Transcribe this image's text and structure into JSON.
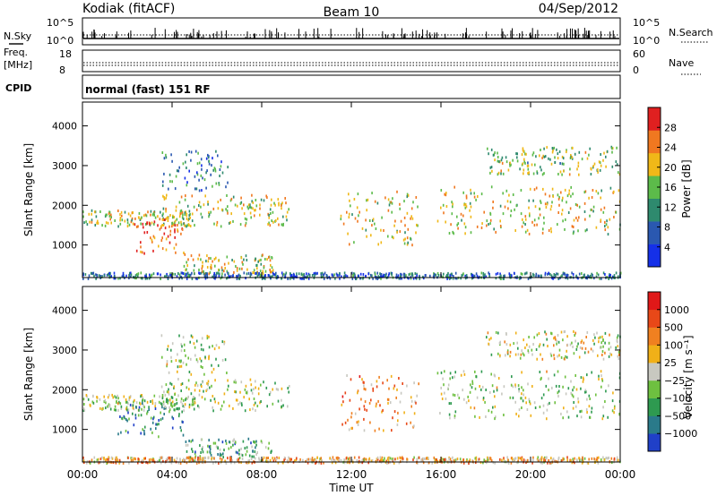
{
  "header": {
    "station": "Kodiak (fitACF)",
    "beam": "Beam 10",
    "date": "04/Sep/2012"
  },
  "strip_nsky": {
    "left_label": "N.Sky",
    "right_label": "N.Search",
    "left_ticks": [
      "10^5",
      "10^0"
    ],
    "right_ticks": [
      "10^5",
      "10^0"
    ]
  },
  "strip_freq": {
    "left_label_1": "Freq.",
    "left_label_2": "[MHz]",
    "right_label": "Nave",
    "left_ticks": [
      "18",
      "8"
    ],
    "right_ticks": [
      "60",
      "0"
    ]
  },
  "cpid": {
    "label": "CPID",
    "value": "normal (fast) 151 RF"
  },
  "chart_data": [
    {
      "type": "heatmap",
      "quantity": "Power",
      "ylabel": "Slant Range [km]",
      "xlabel": "Time UT",
      "ylim": [
        180,
        4600
      ],
      "xlim": [
        0,
        24
      ],
      "yticks": [
        "1000",
        "2000",
        "3000",
        "4000"
      ],
      "xticks": [
        "00:00",
        "04:00",
        "08:00",
        "12:00",
        "16:00",
        "20:00",
        "00:00"
      ],
      "colorbar": {
        "label": "Power [dB]",
        "ticks": [
          "4",
          "8",
          "12",
          "16",
          "20",
          "24",
          "28"
        ],
        "colors": [
          "#1530e8",
          "#2a58b0",
          "#2e8a6e",
          "#5cbb4a",
          "#f0b818",
          "#f07820",
          "#e02020"
        ],
        "range": [
          0,
          30
        ]
      },
      "bands": [
        {
          "t0": 0.0,
          "t1": 5.0,
          "r0": 1500,
          "r1": 1900,
          "level": 0.55
        },
        {
          "t0": 2.3,
          "t1": 4.5,
          "r0": 800,
          "r1": 1700,
          "level": 0.85
        },
        {
          "t0": 3.5,
          "t1": 9.2,
          "r0": 1500,
          "r1": 2300,
          "level": 0.6
        },
        {
          "t0": 3.5,
          "t1": 6.5,
          "r0": 2400,
          "r1": 3400,
          "level": 0.3
        },
        {
          "t0": 4.5,
          "t1": 8.5,
          "r0": 300,
          "r1": 800,
          "level": 0.6
        },
        {
          "t0": 11.5,
          "t1": 15.0,
          "r0": 1000,
          "r1": 2400,
          "level": 0.6
        },
        {
          "t0": 15.8,
          "t1": 24.0,
          "r0": 1300,
          "r1": 2500,
          "level": 0.6
        },
        {
          "t0": 18.0,
          "t1": 24.0,
          "r0": 2800,
          "r1": 3500,
          "level": 0.5
        },
        {
          "t0": 0.0,
          "t1": 24.0,
          "r0": 180,
          "r1": 330,
          "level": 0.25
        }
      ]
    },
    {
      "type": "heatmap",
      "quantity": "Velocity",
      "ylabel": "Slant Range [km]",
      "xlabel": "Time UT",
      "ylim": [
        180,
        4600
      ],
      "xlim": [
        0,
        24
      ],
      "yticks": [
        "1000",
        "2000",
        "3000",
        "4000"
      ],
      "xticks": [
        "00:00",
        "04:00",
        "08:00",
        "12:00",
        "16:00",
        "20:00",
        "00:00"
      ],
      "colorbar": {
        "label": "Velocity [m s⁻¹]",
        "ticks": [
          "1000",
          "500",
          "100",
          "25",
          "−25",
          "−100",
          "−500",
          "−1000"
        ],
        "colors": [
          "#2040c8",
          "#2a7a8a",
          "#2e9a50",
          "#6ec040",
          "#c8c8c0",
          "#f0b018",
          "#f08020",
          "#e84818",
          "#e01818"
        ],
        "range": [
          -1000,
          1000
        ]
      },
      "bands": [
        {
          "t0": 0.0,
          "t1": 5.0,
          "r0": 1500,
          "r1": 1900,
          "level": 0.45
        },
        {
          "t0": 1.5,
          "t1": 4.5,
          "r0": 800,
          "r1": 1700,
          "level": 0.2
        },
        {
          "t0": 3.5,
          "t1": 9.2,
          "r0": 1500,
          "r1": 2300,
          "level": 0.45
        },
        {
          "t0": 3.5,
          "t1": 6.5,
          "r0": 2400,
          "r1": 3400,
          "level": 0.45
        },
        {
          "t0": 4.5,
          "t1": 8.5,
          "r0": 300,
          "r1": 800,
          "level": 0.3
        },
        {
          "t0": 11.5,
          "t1": 15.0,
          "r0": 1000,
          "r1": 2400,
          "level": 0.7
        },
        {
          "t0": 15.8,
          "t1": 24.0,
          "r0": 1300,
          "r1": 2500,
          "level": 0.45
        },
        {
          "t0": 18.0,
          "t1": 24.0,
          "r0": 2800,
          "r1": 3500,
          "level": 0.5
        },
        {
          "t0": 0.0,
          "t1": 24.0,
          "r0": 180,
          "r1": 330,
          "level": 0.62
        }
      ]
    }
  ]
}
